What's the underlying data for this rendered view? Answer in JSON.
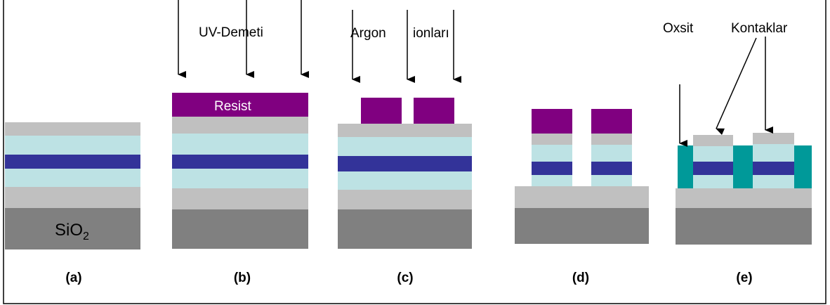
{
  "labels": {
    "uv_beam": "UV-Demeti",
    "argon": "Argon",
    "ions": "ionları",
    "resist": "Resist",
    "substrate": {
      "text": "SiO",
      "subscript": "2"
    },
    "oxide": "Oxsit",
    "contacts": "Kontaklar"
  },
  "panels": [
    "(a)",
    "(b)",
    "(c)",
    "(d)",
    "(e)"
  ]
}
